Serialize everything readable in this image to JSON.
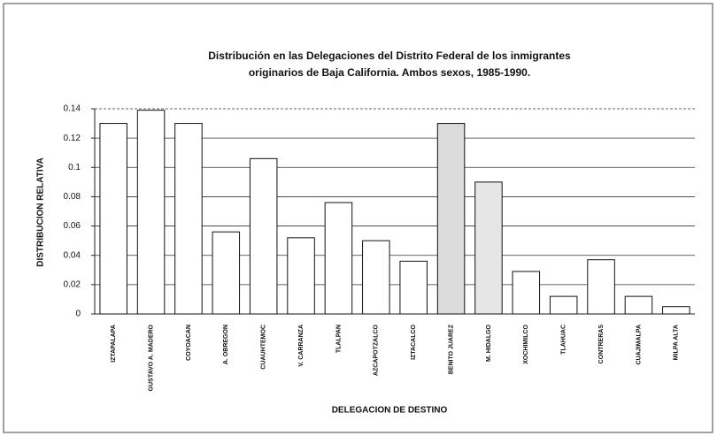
{
  "chart_data": {
    "type": "bar",
    "title": [
      "Distribución en las Delegaciones del Distrito Federal de los inmigrantes",
      "originarios de Baja California. Ambos sexos, 1985-1990."
    ],
    "y_label": "DISTRIBUCION RELATIVA",
    "x_label": "DELEGACION DE DESTINO",
    "categories": [
      "IZTAPALAPA",
      "GUSTAVO A. MADERO",
      "COYOACAN",
      "A. OBREGON",
      "CUAUHTEMOC",
      "V. CARRANZA",
      "TLALPAN",
      "AZCAPOTZALCO",
      "IZTACALCO",
      "BENITO JUAREZ",
      "M. HIDALGO",
      "XOCHIMILCO",
      "TLAHUAC",
      "CONTRERAS",
      "CUAJIMALPA",
      "MILPA ALTA"
    ],
    "values": [
      0.13,
      0.139,
      0.13,
      0.056,
      0.106,
      0.052,
      0.076,
      0.05,
      0.036,
      0.13,
      0.09,
      0.029,
      0.012,
      0.037,
      0.012,
      0.005
    ],
    "colors": [
      "#ffffff",
      "#ffffff",
      "#ffffff",
      "#ffffff",
      "#ffffff",
      "#ffffff",
      "#ffffff",
      "#ffffff",
      "#ffffff",
      "#dcdcdc",
      "#e6e6e6",
      "#ffffff",
      "#ffffff",
      "#ffffff",
      "#ffffff",
      "#ffffff"
    ],
    "ylim": [
      0,
      0.14
    ],
    "yticks": [
      0,
      0.02,
      0.04,
      0.06,
      0.08,
      0.1,
      0.12,
      0.14
    ],
    "grid": true
  }
}
